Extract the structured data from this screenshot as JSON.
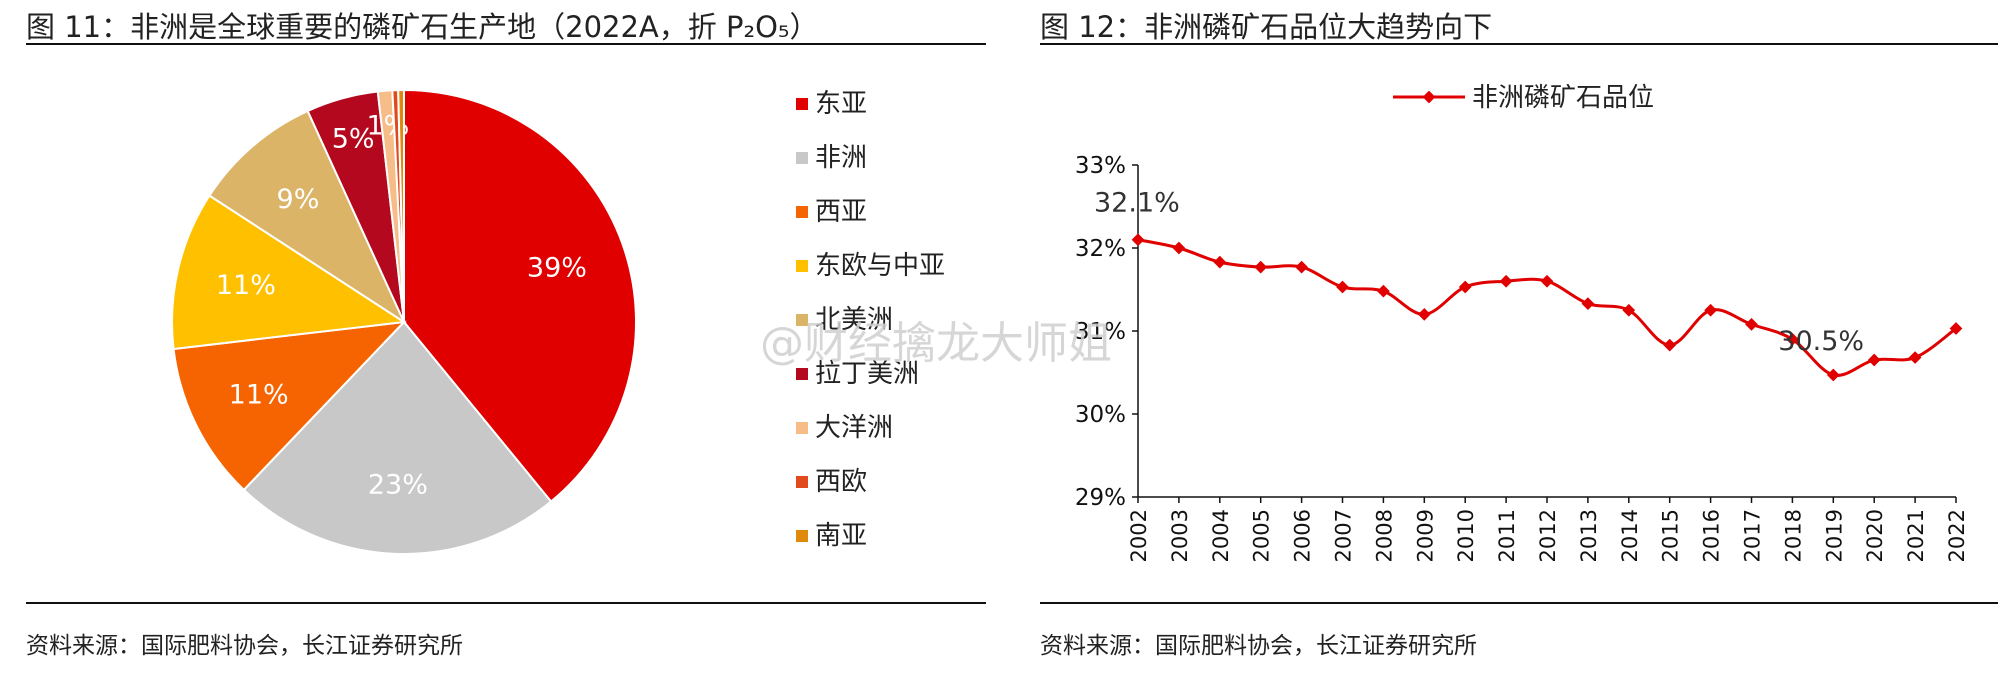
{
  "figures": [
    {
      "title": "图 11：非洲是全球重要的磷矿石生产地（2022A，折 P₂O₅）",
      "source": "资料来源：国际肥料协会，长江证券研究所"
    },
    {
      "title": "图 12：非洲磷矿石品位大趋势向下",
      "source": "资料来源：国际肥料协会，长江证券研究所"
    }
  ],
  "watermark": "@财经擒龙大师姐",
  "chart_data": [
    {
      "type": "pie",
      "title": "图 11：非洲是全球重要的磷矿石生产地（2022A，折 P₂O₅）",
      "slices": [
        {
          "name": "东亚",
          "value": 39,
          "label": "39%",
          "color": "#e00000"
        },
        {
          "name": "非洲",
          "value": 23,
          "label": "23%",
          "color": "#c8c8c8"
        },
        {
          "name": "西亚",
          "value": 11,
          "label": "11%",
          "color": "#f56400"
        },
        {
          "name": "东欧与中亚",
          "value": 11,
          "label": "11%",
          "color": "#ffc000"
        },
        {
          "name": "北美洲",
          "value": 9,
          "label": "9%",
          "color": "#dcb468"
        },
        {
          "name": "拉丁美洲",
          "value": 5,
          "label": "5%",
          "color": "#b4081e"
        },
        {
          "name": "大洋洲",
          "value": 1,
          "label": "1%",
          "color": "#f7bd88"
        },
        {
          "name": "西欧",
          "value": 0.4,
          "label": "",
          "color": "#e04a1c"
        },
        {
          "name": "南亚",
          "value": 0.4,
          "label": "",
          "color": "#e08a0c"
        }
      ],
      "legend_position": "right"
    },
    {
      "type": "line",
      "title": "图 12：非洲磷矿石品位大趋势向下",
      "x": [
        "2002",
        "2003",
        "2004",
        "2005",
        "2006",
        "2007",
        "2008",
        "2009",
        "2010",
        "2011",
        "2012",
        "2013",
        "2014",
        "2015",
        "2016",
        "2017",
        "2018",
        "2019",
        "2020",
        "2021",
        "2022"
      ],
      "series": [
        {
          "name": "非洲磷矿石品位",
          "color": "#e00000",
          "values": [
            32.1,
            32.0,
            31.83,
            31.77,
            31.77,
            31.53,
            31.48,
            31.2,
            31.53,
            31.6,
            31.6,
            31.33,
            31.25,
            30.83,
            31.25,
            31.08,
            30.9,
            30.47,
            30.65,
            30.68,
            31.03
          ]
        }
      ],
      "ylim": [
        29,
        33
      ],
      "yticks": [
        "29%",
        "30%",
        "31%",
        "32%",
        "33%"
      ],
      "annotations": [
        {
          "text": "32.1%",
          "x": "2002"
        },
        {
          "text": "30.5%",
          "x": "2019"
        }
      ],
      "legend_position": "top"
    }
  ]
}
